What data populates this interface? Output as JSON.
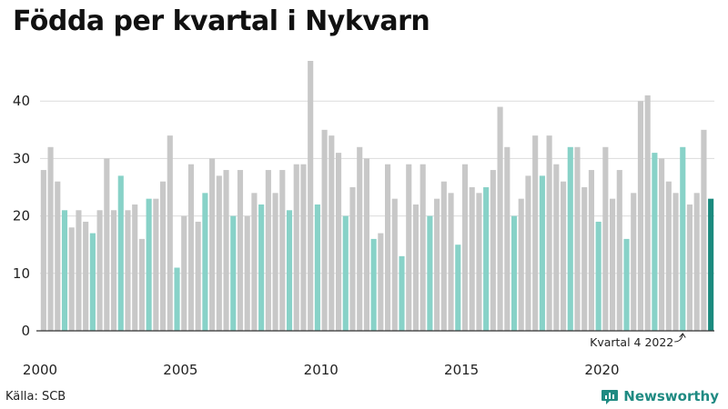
{
  "chart_data": {
    "type": "bar",
    "title": "Födda per kvartal i Nykvarn",
    "xlabel": "",
    "ylabel": "",
    "ylim": [
      0,
      47
    ],
    "y_ticks": [
      0,
      10,
      20,
      30,
      40
    ],
    "x_tick_labels": [
      {
        "label": "2000",
        "year": 2000
      },
      {
        "label": "2005",
        "year": 2005
      },
      {
        "label": "2010",
        "year": 2010
      },
      {
        "label": "2015",
        "year": 2015
      },
      {
        "label": "2020",
        "year": 2020
      }
    ],
    "start_year": 2000,
    "grid": "horizontal",
    "colors": {
      "default": "#c8c8c8",
      "q4": "#88d2c8",
      "latest": "#1b8a7e",
      "grid": "#dcdcdc",
      "axis": "#333333"
    },
    "values": [
      28,
      32,
      26,
      21,
      18,
      21,
      19,
      17,
      21,
      30,
      21,
      27,
      21,
      22,
      16,
      23,
      23,
      26,
      34,
      11,
      20,
      29,
      19,
      24,
      30,
      27,
      28,
      20,
      28,
      20,
      24,
      22,
      28,
      24,
      28,
      21,
      29,
      29,
      47,
      22,
      35,
      34,
      31,
      20,
      25,
      32,
      30,
      16,
      17,
      29,
      23,
      13,
      29,
      22,
      29,
      20,
      23,
      26,
      24,
      15,
      29,
      25,
      24,
      25,
      28,
      39,
      32,
      20,
      23,
      27,
      34,
      27,
      34,
      29,
      26,
      32,
      32,
      25,
      28,
      19,
      32,
      23,
      28,
      16,
      24,
      40,
      41,
      31,
      30,
      26,
      24,
      32,
      22,
      24,
      35,
      23
    ],
    "annotation": {
      "label": "Kvartal 4 2022",
      "index": 91
    }
  },
  "footer": {
    "source": "Källa: SCB",
    "brand": "Newsworthy"
  }
}
